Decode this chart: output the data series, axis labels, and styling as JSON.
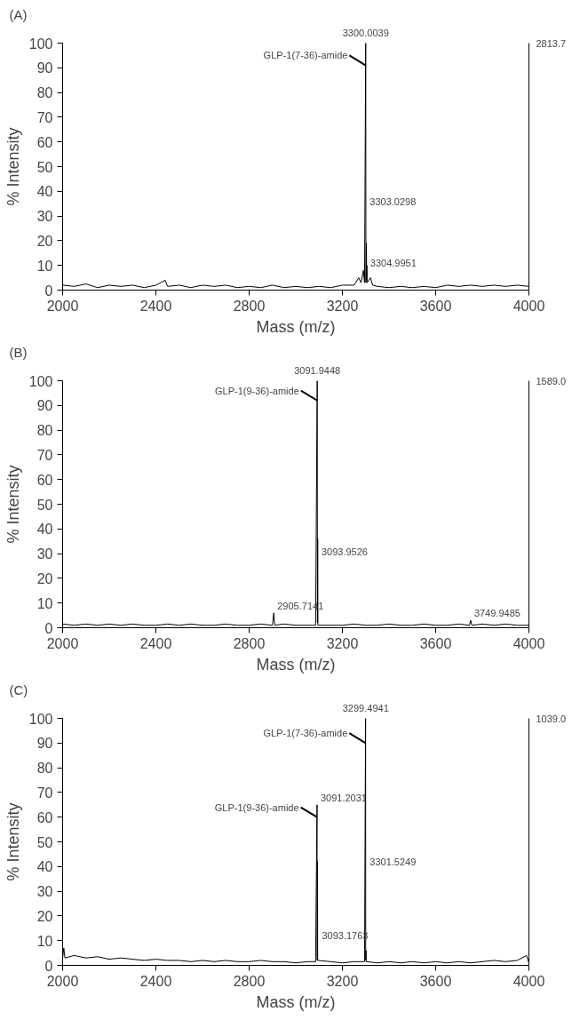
{
  "chart_data": [
    {
      "type": "line",
      "title": "(A)",
      "xlabel": "Mass (m/z)",
      "ylabel": "% Intensity",
      "xlim": [
        2000,
        4000
      ],
      "ylim": [
        0,
        100
      ],
      "xticks": [
        2000,
        2400,
        2800,
        3200,
        3600,
        4000
      ],
      "yticks": [
        0,
        10,
        20,
        30,
        40,
        50,
        60,
        70,
        80,
        90,
        100
      ],
      "grid": false,
      "series": [
        {
          "color": "#000000",
          "x": [
            2000,
            2050,
            2100,
            2150,
            2200,
            2250,
            2300,
            2350,
            2400,
            2440,
            2450,
            2500,
            2550,
            2600,
            2650,
            2700,
            2750,
            2800,
            2850,
            2900,
            2950,
            3000,
            3050,
            3100,
            3150,
            3200,
            3250,
            3270,
            3280,
            3290,
            3295,
            3300,
            3301,
            3303,
            3304,
            3305,
            3306,
            3320,
            3330,
            3350,
            3400,
            3450,
            3500,
            3550,
            3600,
            3650,
            3700,
            3750,
            3800,
            3850,
            3900,
            3950,
            4000
          ],
          "values": [
            2,
            1.5,
            2.5,
            1,
            2,
            1.5,
            2,
            1,
            2,
            4,
            1.5,
            2,
            1,
            2,
            1.5,
            2,
            1,
            1.5,
            1,
            2,
            1,
            1.5,
            1,
            1.5,
            1,
            2,
            2,
            5,
            3,
            8,
            3,
            100,
            3,
            19,
            4,
            10,
            3,
            5,
            2,
            1.5,
            1,
            1.5,
            1,
            1.5,
            1,
            2,
            1.5,
            2,
            1.5,
            2,
            1.5,
            2,
            1.5
          ]
        }
      ],
      "annotations": [
        {
          "text": "3300.0039",
          "x": 3300,
          "y": 100
        },
        {
          "text": "GLP-1(7-36)-amide",
          "x": 3300,
          "y": 91
        },
        {
          "text": "3303.0298",
          "x": 3302,
          "y": 33
        },
        {
          "text": "3304.9951",
          "x": 3304,
          "y": 8
        },
        "2813.7"
      ]
    },
    {
      "type": "line",
      "title": "(B)",
      "xlabel": "Mass (m/z)",
      "ylabel": "% Intensity",
      "xlim": [
        2000,
        4000
      ],
      "ylim": [
        0,
        100
      ],
      "xticks": [
        2000,
        2400,
        2800,
        3200,
        3600,
        4000
      ],
      "yticks": [
        0,
        10,
        20,
        30,
        40,
        50,
        60,
        70,
        80,
        90,
        100
      ],
      "grid": false,
      "series": [
        {
          "color": "#000000",
          "x": [
            2000,
            2050,
            2100,
            2150,
            2200,
            2250,
            2300,
            2350,
            2400,
            2450,
            2500,
            2550,
            2600,
            2650,
            2700,
            2750,
            2800,
            2850,
            2900,
            2905.7,
            2910,
            2950,
            3000,
            3050,
            3085,
            3092,
            3093,
            3094,
            3095,
            3150,
            3200,
            3250,
            3300,
            3350,
            3400,
            3450,
            3500,
            3550,
            3600,
            3650,
            3700,
            3745,
            3750,
            3755,
            3800,
            3850,
            3900,
            3950,
            4000
          ],
          "values": [
            1.5,
            1,
            1.5,
            1,
            1.5,
            1,
            1.5,
            1,
            1,
            1.5,
            1,
            1.5,
            1,
            1,
            1.5,
            1,
            1,
            1.5,
            1,
            6,
            1,
            1.5,
            1,
            1,
            1,
            100,
            2,
            36,
            1,
            1,
            1,
            1.5,
            1,
            1,
            1.5,
            1,
            1,
            1.5,
            1,
            1,
            1.5,
            1,
            3,
            1,
            1.5,
            1,
            1.5,
            1,
            1
          ]
        }
      ],
      "annotations": [
        {
          "text": "3091.9448",
          "x": 3092,
          "y": 100
        },
        {
          "text": "GLP-1(9-36)-amide",
          "x": 3092,
          "y": 92
        },
        {
          "text": "3093.9526",
          "x": 3095,
          "y": 28
        },
        {
          "text": "2905.7141",
          "x": 2905.7,
          "y": 6
        },
        {
          "text": "3749.9485",
          "x": 3750,
          "y": 3
        },
        "1589.0"
      ]
    },
    {
      "type": "line",
      "title": "(C)",
      "xlabel": "Mass (m/z)",
      "ylabel": "% Intensity",
      "xlim": [
        2000,
        4000
      ],
      "ylim": [
        0,
        100
      ],
      "xticks": [
        2000,
        2400,
        2800,
        3200,
        3600,
        4000
      ],
      "yticks": [
        0,
        10,
        20,
        30,
        40,
        50,
        60,
        70,
        80,
        90,
        100
      ],
      "grid": false,
      "series": [
        {
          "color": "#000000",
          "x": [
            2000,
            2005,
            2010,
            2050,
            2100,
            2150,
            2200,
            2250,
            2300,
            2350,
            2400,
            2450,
            2500,
            2550,
            2600,
            2650,
            2700,
            2750,
            2800,
            2850,
            2900,
            2950,
            3000,
            3050,
            3085,
            3091.2,
            3092,
            3093.2,
            3094,
            3150,
            3200,
            3250,
            3295,
            3299.5,
            3300,
            3301.5,
            3302,
            3350,
            3400,
            3450,
            3500,
            3550,
            3600,
            3650,
            3700,
            3750,
            3800,
            3850,
            3900,
            3950,
            3990,
            4000
          ],
          "values": [
            3,
            7,
            3,
            4,
            3,
            3.5,
            2.5,
            3,
            2.5,
            2,
            2.5,
            2,
            2,
            1.5,
            2,
            1.5,
            2,
            1.5,
            1.5,
            2,
            1.5,
            1.5,
            1,
            1.5,
            1.5,
            65,
            2,
            42,
            2,
            1.5,
            1,
            1.5,
            1.5,
            100,
            2,
            6,
            1.5,
            1,
            1.5,
            1,
            1.5,
            1,
            1.5,
            1,
            1.5,
            1,
            1.5,
            2,
            1.5,
            2,
            4,
            1
          ]
        }
      ],
      "annotations": [
        {
          "text": "3299.4941",
          "x": 3300,
          "y": 100
        },
        {
          "text": "GLP-1(7-36)-amide",
          "x": 3299.5,
          "y": 90
        },
        {
          "text": "GLP-1(9-36)-amide",
          "x": 3091.2,
          "y": 60
        },
        {
          "text": "3091.2031",
          "x": 3091.2,
          "y": 65
        },
        {
          "text": "3301.5249",
          "x": 3302,
          "y": 39
        },
        {
          "text": "3093.1763",
          "x": 3097,
          "y": 9
        },
        "1039.0"
      ]
    }
  ]
}
